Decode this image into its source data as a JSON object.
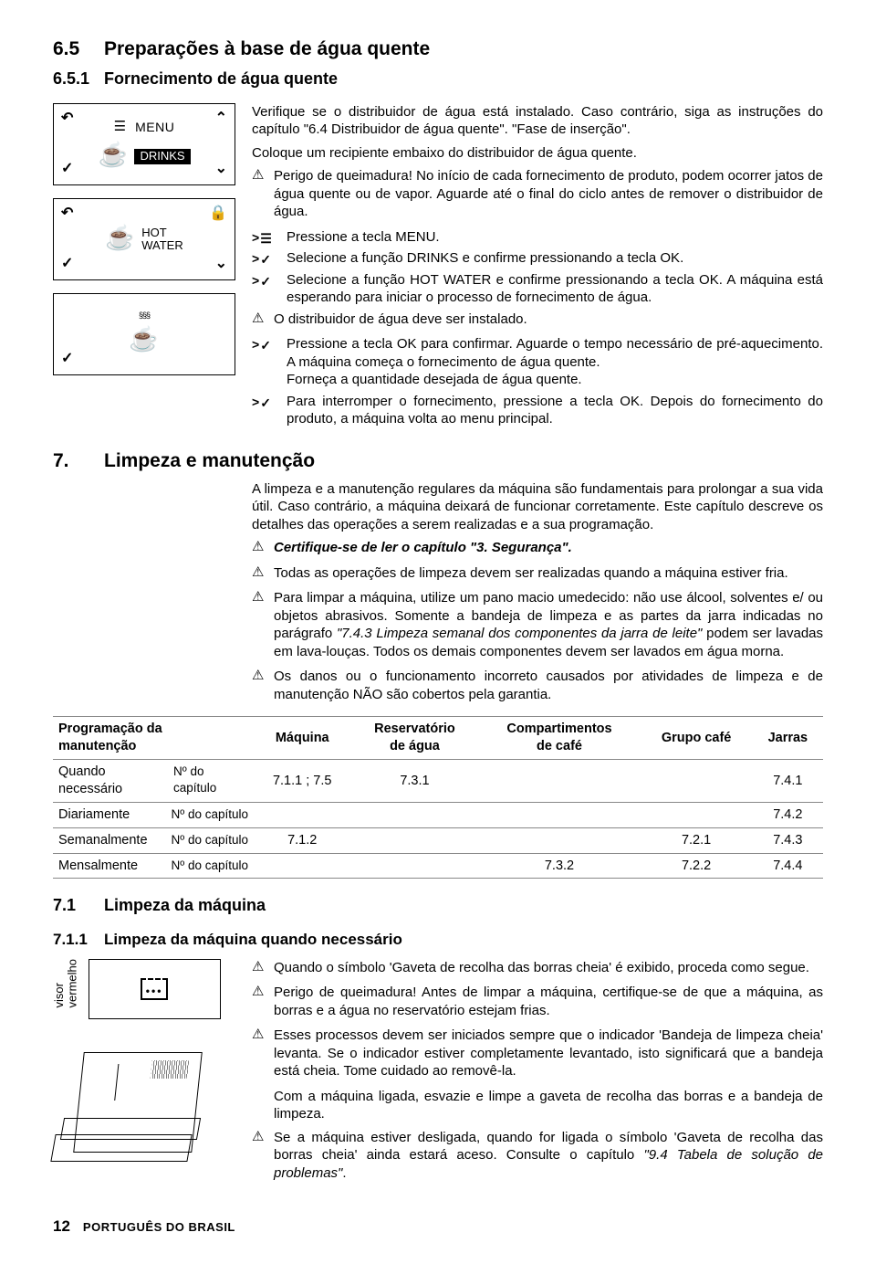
{
  "s65": {
    "num": "6.5",
    "title": "Preparações à base de água quente",
    "s651_num": "6.5.1",
    "s651_title": "Fornecimento de água quente",
    "menu_label": "MENU",
    "drinks_label": "DRINKS",
    "hotwater_line1": "HOT",
    "hotwater_line2": "WATER",
    "p1": "Verifique se o distribuidor de água está instalado. Caso contrário, siga as instruções do capítulo \"6.4 Distribuidor de água quente\". \"Fase de inserção\".",
    "p2": "Coloque um recipiente embaixo do distribuidor de água quente.",
    "warn1": "Perigo de queimadura! No início de cada fornecimento de produto, podem ocorrer jatos de água quente ou de vapor. Aguarde até o final do ciclo antes de remover o distribuidor de água.",
    "i1": "Pressione a tecla MENU.",
    "i2": "Selecione a função DRINKS e confirme pressionando a tecla OK.",
    "i3": "Selecione a função HOT WATER e confirme pressionando a tecla OK. A máquina está esperando para iniciar o processo de fornecimento de água.",
    "warn2": "O distribuidor de água deve ser instalado.",
    "i4": "Pressione a tecla OK para confirmar. Aguarde o tempo necessário de pré-aquecimento. A máquina começa o fornecimento de água quente.",
    "i4b": "Forneça a quantidade desejada de água quente.",
    "i5": "Para interromper o fornecimento, pressione a tecla OK. Depois do fornecimento do produto, a máquina volta ao menu principal."
  },
  "s7": {
    "num": "7.",
    "title": "Limpeza e manutenção",
    "intro": "A limpeza e a manutenção regulares da máquina são fundamentais para prolongar a sua vida útil. Caso contrário, a máquina deixará de funcionar corretamente. Este capítulo descreve os detalhes das operações a serem realizadas e a sua programação.",
    "warn_bold": "Certifique-se de ler o capítulo \"3. Segurança\".",
    "warn2": "Todas as operações de limpeza devem ser realizadas quando a máquina estiver fria.",
    "warn3": "Para limpar a máquina, utilize um pano macio umedecido: não use álcool, solventes e/ ou objetos abrasivos. Somente a bandeja de limpeza e as partes da jarra indicadas no parágrafo \"7.4.3 Limpeza semanal dos componentes da jarra de leite\" podem ser lavadas em lava-louças. Todos os demais componentes devem ser lavados em água morna.",
    "warn4": "Os danos ou o funcionamento incorreto causados por atividades de limpeza e de manutenção NÃO são cobertos pela garantia.",
    "table": {
      "h0a": "Programação da",
      "h0b": "manutenção",
      "h1": "Máquina",
      "h2a": "Reservatório",
      "h2b": "de água",
      "h3a": "Compartimentos",
      "h3b": "de café",
      "h4": "Grupo café",
      "h5": "Jarras",
      "chap": "Nº do capítulo",
      "rows": [
        {
          "label": "Quando necessário",
          "c1": "7.1.1 ; 7.5",
          "c2": "7.3.1",
          "c3": "",
          "c4": "",
          "c5": "7.4.1"
        },
        {
          "label": "Diariamente",
          "c1": "",
          "c2": "",
          "c3": "",
          "c4": "",
          "c5": "7.4.2"
        },
        {
          "label": "Semanalmente",
          "c1": "7.1.2",
          "c2": "",
          "c3": "",
          "c4": "7.2.1",
          "c5": "7.4.3"
        },
        {
          "label": "Mensalmente",
          "c1": "",
          "c2": "",
          "c3": "7.3.2",
          "c4": "7.2.2",
          "c5": "7.4.4"
        }
      ]
    }
  },
  "s71": {
    "num": "7.1",
    "title": "Limpeza da máquina",
    "visor_a": "visor",
    "visor_b": "vermelho",
    "s711_num": "7.1.1",
    "s711_title": "Limpeza da máquina quando necessário",
    "w1": "Quando o símbolo 'Gaveta de recolha das borras cheia' é exibido, proceda como segue.",
    "w2": "Perigo de queimadura! Antes de limpar a máquina, certifique-se de que a máquina, as borras e a água no reservatório estejam frias.",
    "w3": "Esses processos devem ser iniciados sempre que o indicador 'Bandeja de limpeza cheia' levanta. Se o indicador estiver completamente levantado, isto significará que a bandeja está cheia. Tome cuidado ao removê-la.",
    "p1": "Com a máquina ligada, esvazie e limpe a gaveta de recolha das borras e a bandeja de limpeza.",
    "w4": "Se a máquina estiver desligada, quando for ligada o símbolo 'Gaveta de recolha das borras cheia' ainda estará aceso. Consulte o capítulo \"9.4 Tabela de solução de problemas\"."
  },
  "footer": {
    "page": "12",
    "lang": "PORTUGUÊS DO BRASIL"
  }
}
